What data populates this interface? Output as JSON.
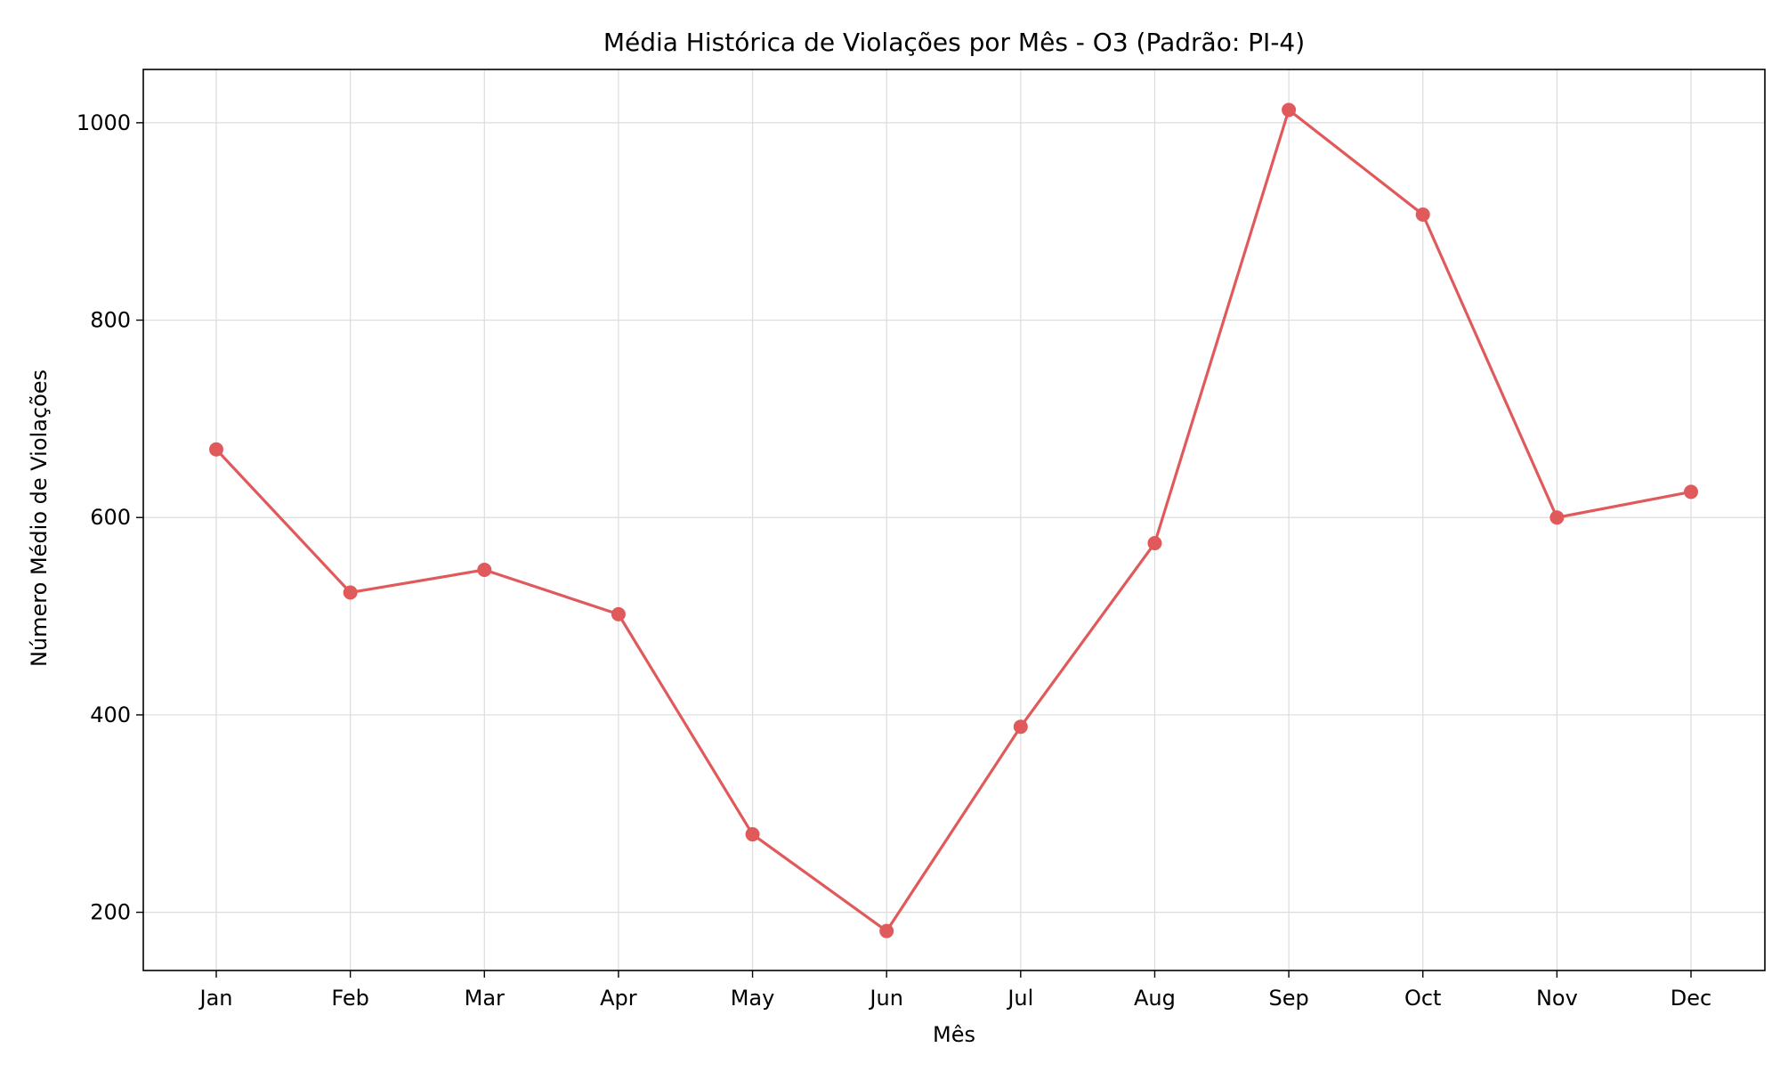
{
  "chart_data": {
    "type": "line",
    "title": "Média Histórica de Violações por Mês - O3 (Padrão: PI-4)",
    "xlabel": "Mês",
    "ylabel": "Número Médio de Violações",
    "categories": [
      "Jan",
      "Feb",
      "Mar",
      "Apr",
      "May",
      "Jun",
      "Jul",
      "Aug",
      "Sep",
      "Oct",
      "Nov",
      "Dec"
    ],
    "series": [
      {
        "values": [
          669,
          524,
          547,
          502,
          279,
          181,
          388,
          574,
          1013,
          907,
          600,
          626
        ],
        "color": "#e05a5c",
        "marker": "circle"
      }
    ],
    "ylim": [
      141,
      1054
    ],
    "yticks": [
      200,
      400,
      600,
      800,
      1000
    ],
    "grid": true,
    "legend": "none"
  }
}
